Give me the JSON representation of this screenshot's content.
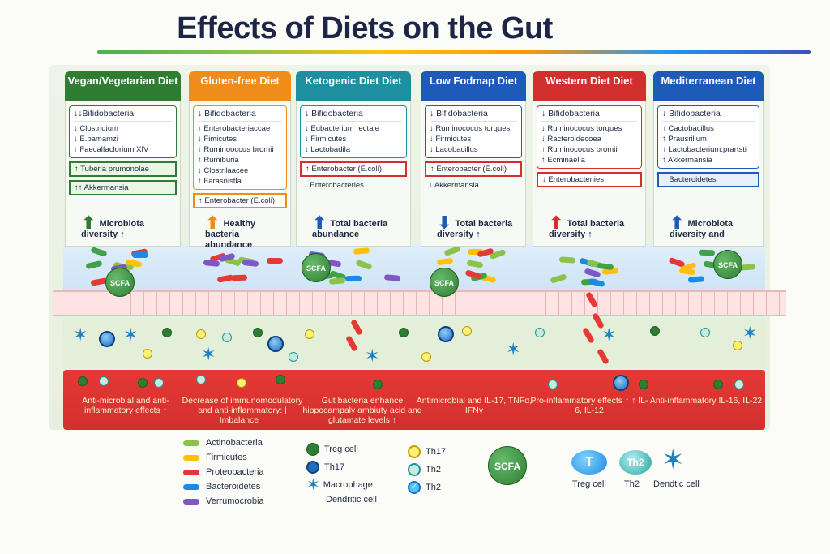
{
  "title": "Effects of Diets on the Gut",
  "columns": [
    {
      "name": "Vegan/Vegetarian Diet",
      "color": "#2e7d32",
      "head_item": "↓↓Bifidobacteria",
      "items": [
        "↓ Clostridium",
        "↓ E.pamamzi",
        "↑ Faecalfaclorium XIV"
      ],
      "highlight": [
        "↑ Tuberia prumonolae",
        "↑↑ Akkermansia"
      ],
      "effect": "Microbiota diversity ↑"
    },
    {
      "name": "Gluten-free Diet",
      "color": "#ef8c1a",
      "head_item": "↓ Bifidobacteria",
      "items": [
        "↑ Enterobacteriaccae",
        "↓ Fimicutes",
        "↑ Ruminooccus bromii",
        "↑ Rumiburia",
        "↓ Clostrilaacee",
        "↑ Farasnistla"
      ],
      "highlight": [
        "↑ Enterobacter (E.coli)"
      ],
      "effect": "Healthy bacteria abundance"
    },
    {
      "name": "Ketogenic Diet Diet",
      "color": "#1e8fa0",
      "head_item": "↓ Bifidobacteria",
      "items": [
        "↓ Eubacterium rectale",
        "↓ Firmicutes",
        "↓ Lactobadila"
      ],
      "highlight": [
        "↑ Enterobacter (E.coli)"
      ],
      "extra": "↓ Enterobacteries",
      "effect": "Total bacteria abundance"
    },
    {
      "name": "Low Fodmap Diet",
      "color": "#1e5bb8",
      "head_item": "↓ Bifidobacteria",
      "items": [
        "↓ Ruminococus torques",
        "↓ Firmicutes",
        "↓ Lacobacillus"
      ],
      "highlight": [
        "↑ Enterobacter (E.coli)"
      ],
      "extra": "↓ Akkermansia",
      "effect": "Total bacteria diversity ↑"
    },
    {
      "name": "Western Diet Diet",
      "color": "#d32f2f",
      "head_item": "↓ Bifidobacteria",
      "items": [
        "↓ Ruminococus torques",
        "↓ Racteroidecoea",
        "↑ Ruminococus bromii",
        "↑ Ecminaelia"
      ],
      "highlight": [
        "↓ Enterobactenies"
      ],
      "effect": "Total bacteria diversity ↑"
    },
    {
      "name": "Mediterranean Diet",
      "color": "#1e5bb8",
      "head_item": "↓ Bifidobacteria",
      "items": [
        "↑ Cactobacillus",
        "↑ Prausrilium",
        "↑ Lactobacterium,prartsti",
        "↑ Akkermansia"
      ],
      "highlight": [
        "↑ Bacteroidetes"
      ],
      "effect": "Microbiota diversity and"
    }
  ],
  "scfa_label": "SCFA",
  "blood_effects": [
    "Anti-microbial and anti-inflammatory effects ↑",
    "Decrease of immunomodulatory and anti-inflammatory: | Imbalance ↑",
    "Gut bacteria enhance hippocampaly ambiuty acid and glutamate levels ↑",
    "Antimicrobial and IL-17, TNFα, IFNγ",
    "Pro-inflammatory effects ↑ ↑ IL-6, IL-12",
    "Anti-inflammatory IL-16, IL-22"
  ],
  "legend_bacteria": [
    {
      "label": "Actinobacteria",
      "color": "#8bc34a"
    },
    {
      "label": "Firmicutes",
      "color": "#ffc107"
    },
    {
      "label": "Proteobacteria",
      "color": "#e53935"
    },
    {
      "label": "Bacteroidetes",
      "color": "#1e88e5"
    },
    {
      "label": "Verrumocrobia",
      "color": "#7e57c2"
    }
  ],
  "legend_cells": [
    "Treg cell",
    "Th17",
    "Macrophage",
    "Dendritic cell"
  ],
  "legend_th": [
    "Th17",
    "Th2",
    "Th2"
  ],
  "legend_icons": [
    "Treg cell",
    "Th2",
    "Dendtic cell"
  ],
  "legend_icon_letters": [
    "T",
    "Th2"
  ]
}
